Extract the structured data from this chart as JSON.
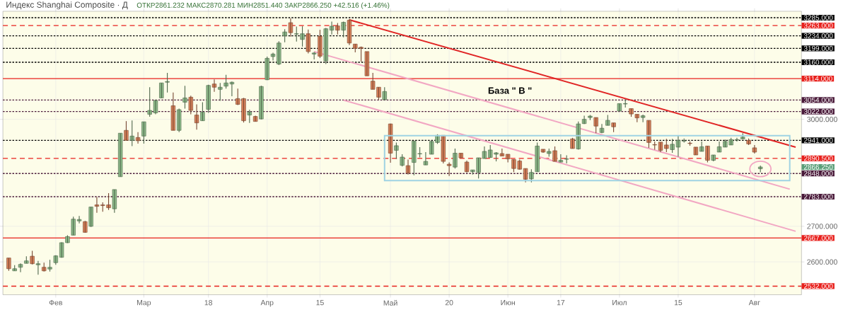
{
  "chart_data": {
    "type": "candlestick",
    "title": "Индекс Shanghai Composite · Д",
    "subtitle": "ОТКР2861.232 МАКС2870.281 МИН2851.440 ЗАКР2866.250 +42.516 (+1.46%)",
    "categories": [
      null,
      null,
      null,
      null,
      null,
      null,
      null,
      null,
      "Фев",
      null,
      null,
      null,
      null,
      null,
      null,
      null,
      null,
      null,
      null,
      null,
      null,
      null,
      null,
      "Мар",
      null,
      null,
      null,
      null,
      null,
      null,
      null,
      null,
      null,
      null,
      "18",
      null,
      null,
      null,
      null,
      null,
      null,
      null,
      null,
      null,
      "Апр",
      null,
      null,
      null,
      null,
      null,
      null,
      null,
      null,
      "15",
      null,
      null,
      null,
      null,
      null,
      null,
      null,
      null,
      null,
      null,
      null,
      "Май",
      null,
      null,
      null,
      null,
      null,
      null,
      null,
      null,
      null,
      "20",
      null,
      null,
      null,
      null,
      null,
      null,
      null,
      null,
      null,
      "Июн",
      null,
      null,
      null,
      null,
      null,
      null,
      null,
      null,
      "17",
      null,
      null,
      null,
      null,
      null,
      null,
      null,
      null,
      null,
      "Июл",
      null,
      null,
      null,
      null,
      null,
      null,
      null,
      null,
      null,
      "15",
      null,
      null,
      null,
      null,
      null,
      null,
      null,
      null,
      null,
      null,
      null,
      null,
      "Авг",
      null,
      null,
      null,
      null,
      null,
      null,
      null,
      null
    ],
    "ohlc": [
      [
        2611,
        2611,
        2575,
        2581
      ],
      [
        2575,
        2591,
        2575,
        2581
      ],
      [
        2585,
        2596,
        2571,
        2593
      ],
      [
        2596,
        2616,
        2596,
        2603
      ],
      [
        2616,
        2631,
        2593,
        2595
      ],
      [
        2592,
        2603,
        2564,
        2595
      ],
      [
        2585,
        2598,
        2573,
        2575
      ],
      [
        2580,
        2606,
        2573,
        2585
      ],
      [
        2598,
        2619,
        2592,
        2617
      ],
      [
        2613,
        2655,
        2612,
        2654
      ],
      [
        2654,
        2675,
        2653,
        2671
      ],
      [
        2675,
        2727,
        2675,
        2720
      ],
      [
        2715,
        2729,
        2708,
        2719
      ],
      [
        2713,
        2715,
        2682,
        2683
      ],
      [
        2700,
        2754,
        2698,
        2754
      ],
      [
        2760,
        2782,
        2738,
        2756
      ],
      [
        2760,
        2767,
        2741,
        2758
      ],
      [
        2760,
        2793,
        2746,
        2752
      ],
      [
        2749,
        2803,
        2738,
        2803
      ],
      [
        2839,
        2961,
        2839,
        2961
      ],
      [
        2969,
        2995,
        2941,
        2941
      ],
      [
        2941,
        2997,
        2925,
        2953
      ],
      [
        2949,
        2964,
        2932,
        2940
      ],
      [
        2953,
        2993,
        2932,
        2993
      ],
      [
        3014,
        3090,
        3007,
        3025
      ],
      [
        3018,
        3053,
        3014,
        3053
      ],
      [
        3060,
        3102,
        3060,
        3102
      ],
      [
        3104,
        3130,
        3075,
        3106
      ],
      [
        3038,
        3075,
        2969,
        2969
      ],
      [
        2969,
        3030,
        2964,
        3027
      ],
      [
        3048,
        3094,
        3030,
        3060
      ],
      [
        3062,
        3066,
        3014,
        3025
      ],
      [
        3012,
        3042,
        2971,
        2990
      ],
      [
        2996,
        3048,
        2996,
        3020
      ],
      [
        3028,
        3097,
        3018,
        3095
      ],
      [
        3099,
        3112,
        3077,
        3090
      ],
      [
        3084,
        3102,
        3052,
        3090
      ],
      [
        3093,
        3125,
        3086,
        3102
      ],
      [
        3099,
        3106,
        3065,
        3104
      ],
      [
        3058,
        3086,
        3040,
        3042
      ],
      [
        3058,
        3060,
        2991,
        2996
      ],
      [
        3012,
        3027,
        2990,
        3021
      ],
      [
        3008,
        3010,
        2994,
        2994
      ],
      [
        3001,
        3094,
        3000,
        3092
      ],
      [
        3111,
        3176,
        3110,
        3171
      ],
      [
        3176,
        3187,
        3165,
        3183
      ],
      [
        3155,
        3219,
        3152,
        3214
      ],
      [
        3234,
        3253,
        3216,
        3245
      ],
      [
        3271,
        3283,
        3232,
        3243
      ],
      [
        3239,
        3260,
        3218,
        3240
      ],
      [
        3224,
        3261,
        3204,
        3240
      ],
      [
        3240,
        3252,
        3185,
        3190
      ],
      [
        3183,
        3189,
        3168,
        3186
      ],
      [
        3233,
        3251,
        3172,
        3177
      ],
      [
        3164,
        3256,
        3155,
        3254
      ],
      [
        3250,
        3274,
        3238,
        3261
      ],
      [
        3262,
        3270,
        3238,
        3250
      ],
      [
        3250,
        3274,
        3230,
        3272
      ],
      [
        3278,
        3281,
        3208,
        3214
      ],
      [
        3211,
        3211,
        3188,
        3199
      ],
      [
        3202,
        3204,
        3162,
        3199
      ],
      [
        3190,
        3190,
        3122,
        3122
      ],
      [
        3107,
        3130,
        3084,
        3084
      ],
      [
        3090,
        3090,
        3055,
        3062
      ],
      [
        3055,
        3090,
        3055,
        3078
      ],
      [
        2987,
        2988,
        2878,
        2905
      ],
      [
        2913,
        2935,
        2889,
        2926
      ],
      [
        2871,
        2902,
        2868,
        2894
      ],
      [
        2870,
        2887,
        2845,
        2849
      ],
      [
        2879,
        2939,
        2843,
        2939
      ],
      [
        2903,
        2922,
        2893,
        2904
      ],
      [
        2872,
        2908,
        2872,
        2882
      ],
      [
        2902,
        2941,
        2902,
        2938
      ],
      [
        2935,
        2958,
        2931,
        2955
      ],
      [
        2955,
        2955,
        2876,
        2882
      ],
      [
        2874,
        2879,
        2841,
        2870
      ],
      [
        2866,
        2918,
        2862,
        2905
      ],
      [
        2905,
        2905,
        2892,
        2892
      ],
      [
        2880,
        2884,
        2851,
        2853
      ],
      [
        2853,
        2858,
        2845,
        2858
      ],
      [
        2851,
        2892,
        2834,
        2892
      ],
      [
        2890,
        2924,
        2890,
        2910
      ],
      [
        2893,
        2928,
        2892,
        2914
      ],
      [
        2902,
        2908,
        2882,
        2906
      ],
      [
        2904,
        2918,
        2897,
        2897
      ],
      [
        2902,
        2902,
        2879,
        2889
      ],
      [
        2887,
        2887,
        2852,
        2862
      ],
      [
        2883,
        2887,
        2859,
        2860
      ],
      [
        2862,
        2862,
        2823,
        2832
      ],
      [
        2833,
        2860,
        2823,
        2851
      ],
      [
        2853,
        2935,
        2853,
        2925
      ],
      [
        2916,
        2916,
        2906,
        2908
      ],
      [
        2904,
        2918,
        2895,
        2910
      ],
      [
        2912,
        2924,
        2882,
        2882
      ],
      [
        2880,
        2902,
        2879,
        2885
      ],
      [
        2888,
        2899,
        2876,
        2889
      ],
      [
        2945,
        2948,
        2918,
        2918
      ],
      [
        2917,
        2994,
        2915,
        2987
      ],
      [
        2988,
        3010,
        2987,
        3000
      ],
      [
        3005,
        3012,
        2998,
        3009
      ],
      [
        3005,
        3005,
        2961,
        2981
      ],
      [
        2963,
        2987,
        2961,
        2975
      ],
      [
        2983,
        3012,
        2983,
        2997
      ],
      [
        2990,
        2990,
        2964,
        2979
      ],
      [
        3023,
        3044,
        3023,
        3044
      ],
      [
        3043,
        3056,
        3033,
        3044
      ],
      [
        3030,
        3030,
        3007,
        3015
      ],
      [
        3014,
        3014,
        2992,
        3004
      ],
      [
        3005,
        3013,
        2992,
        3010
      ],
      [
        2997,
        2997,
        2920,
        2935
      ],
      [
        2929,
        2938,
        2915,
        2928
      ],
      [
        2936,
        2936,
        2908,
        2913
      ],
      [
        2928,
        2945,
        2908,
        2918
      ],
      [
        2915,
        2945,
        2906,
        2930
      ],
      [
        2922,
        2954,
        2895,
        2941
      ],
      [
        2939,
        2946,
        2935,
        2940
      ],
      [
        2933,
        2938,
        2926,
        2932
      ],
      [
        2922,
        2922,
        2900,
        2900
      ],
      [
        2910,
        2938,
        2910,
        2923
      ],
      [
        2925,
        2925,
        2879,
        2885
      ],
      [
        2885,
        2900,
        2882,
        2900
      ],
      [
        2908,
        2938,
        2908,
        2923
      ],
      [
        2922,
        2943,
        2922,
        2938
      ],
      [
        2928,
        2948,
        2928,
        2943
      ],
      [
        2942,
        2948,
        2938,
        2943
      ],
      [
        2945,
        2961,
        2945,
        2950
      ],
      [
        2941,
        2946,
        2928,
        2931
      ],
      [
        2920,
        2928,
        2904,
        2908
      ],
      [
        2861.232,
        2870.281,
        2851.44,
        2866.25
      ],
      null,
      null,
      null,
      null,
      null,
      null,
      null
    ],
    "colors": [
      "#d9825b",
      "#8fbc8b",
      "#8fbc8b",
      "#8fbc8b",
      "#d9825b",
      "#8fbc8b",
      "#d9825b",
      "#8fbc8b",
      "#8fbc8b",
      "#8fbc8b",
      "#8fbc8b",
      "#8fbc8b",
      "#8fbc8b",
      "#d9825b",
      "#8fbc8b",
      "#d9825b",
      "#d9825b",
      "#d9825b",
      "#8fbc8b",
      "#8fbc8b",
      "#d9825b",
      "#8fbc8b",
      "#d9825b",
      "#8fbc8b",
      "#8fbc8b",
      "#8fbc8b",
      "#8fbc8b",
      "#8fbc8b",
      "#d9825b",
      "#8fbc8b",
      "#8fbc8b",
      "#d9825b",
      "#d9825b",
      "#8fbc8b",
      "#8fbc8b",
      "#d9825b",
      "#8fbc8b",
      "#8fbc8b",
      "#8fbc8b",
      "#d9825b",
      "#d9825b",
      "#8fbc8b",
      "#d9825b",
      "#8fbc8b",
      "#8fbc8b",
      "#8fbc8b",
      "#8fbc8b",
      "#8fbc8b",
      "#d9825b",
      "#8fbc8b",
      "#8fbc8b",
      "#d9825b",
      "#8fbc8b",
      "#d9825b",
      "#8fbc8b",
      "#8fbc8b",
      "#d9825b",
      "#8fbc8b",
      "#d9825b",
      "#d9825b",
      "#d9825b",
      "#d9825b",
      "#d9825b",
      "#d9825b",
      "#8fbc8b",
      "#d9825b",
      "#8fbc8b",
      "#8fbc8b",
      "#d9825b",
      "#8fbc8b",
      "#8fbc8b",
      "#8fbc8b",
      "#8fbc8b",
      "#8fbc8b",
      "#d9825b",
      "#d9825b",
      "#8fbc8b",
      "#d9825b",
      "#d9825b",
      "#8fbc8b",
      "#8fbc8b",
      "#8fbc8b",
      "#8fbc8b",
      "#8fbc8b",
      "#d9825b",
      "#d9825b",
      "#d9825b",
      "#d9825b",
      "#d9825b",
      "#8fbc8b",
      "#8fbc8b",
      "#d9825b",
      "#8fbc8b",
      "#d9825b",
      "#8fbc8b",
      "#8fbc8b",
      "#d9825b",
      "#8fbc8b",
      "#8fbc8b",
      "#8fbc8b",
      "#d9825b",
      "#8fbc8b",
      "#8fbc8b",
      "#d9825b",
      "#8fbc8b",
      "#8fbc8b",
      "#d9825b",
      "#d9825b",
      "#8fbc8b",
      "#d9825b",
      "#d9825b",
      "#d9825b",
      "#d9825b",
      "#8fbc8b",
      "#8fbc8b",
      "#8fbc8b",
      "#d9825b",
      "#d9825b",
      "#8fbc8b",
      "#d9825b",
      "#8fbc8b",
      "#8fbc8b",
      "#8fbc8b",
      "#8fbc8b",
      "#8fbc8b",
      "#8fbc8b",
      "#d9825b",
      "#d9825b",
      "#8fbc8b",
      null,
      null,
      null,
      null,
      null,
      null,
      null
    ],
    "ylim": [
      2508,
      3303
    ],
    "yticks": [
      {
        "value": 2600,
        "label": "2600.000"
      },
      {
        "value": 2700,
        "label": "2700.000"
      },
      {
        "value": 3000,
        "label": "3000.000"
      }
    ],
    "grid": true,
    "ref_lines": [
      {
        "axis": "y",
        "value": 3285,
        "label": "3285.000",
        "color": "#000000",
        "line_style": "dotted"
      },
      {
        "axis": "y",
        "value": 3263,
        "label": "3263.000",
        "color": "#e8201c",
        "line_style": "dashed"
      },
      {
        "axis": "y",
        "value": 3234,
        "label": "3234.000",
        "color": "#000000",
        "line_style": "dotted"
      },
      {
        "axis": "y",
        "value": 3199,
        "label": "3199.000",
        "color": "#000000",
        "line_style": "dotted"
      },
      {
        "axis": "y",
        "value": 3160,
        "label": "3160.000",
        "color": "#000000",
        "line_style": "dotted"
      },
      {
        "axis": "y",
        "value": 3114,
        "label": "3114.000",
        "color": "#e8201c",
        "line_style": "solid"
      },
      {
        "axis": "y",
        "value": 3054,
        "label": "3054.000",
        "color": "#4a1a3a",
        "line_style": "dotted"
      },
      {
        "axis": "y",
        "value": 3022,
        "label": "3022.000",
        "color": "#4a1a3a",
        "line_style": "dotted"
      },
      {
        "axis": "y",
        "value": 2941,
        "label": "2941.000",
        "color": "#000000",
        "line_style": "dotted"
      },
      {
        "axis": "y",
        "value": 2890.5,
        "label": "2890.500",
        "color": "#e8201c",
        "line_style": "dashed"
      },
      {
        "axis": "y",
        "value": 2848,
        "label": "2848.000",
        "color": "#4a1a3a",
        "line_style": "dotted"
      },
      {
        "axis": "y",
        "value": 2783,
        "label": "2783.000",
        "color": "#4a1a3a",
        "line_style": "dotted"
      },
      {
        "axis": "y",
        "value": 2667,
        "label": "2667.000",
        "color": "#e8201c",
        "line_style": "solid"
      },
      {
        "axis": "y",
        "value": 2532,
        "label": "2532.000",
        "color": "#e8201c",
        "line_style": "dashed"
      }
    ],
    "series": [
      {
        "type": "line",
        "color": "#e02424",
        "values": [
          null,
          null,
          null,
          null,
          null,
          null,
          null,
          null,
          null,
          null,
          null,
          null,
          null,
          null,
          null,
          null,
          null,
          null,
          null,
          null,
          null,
          null,
          null,
          null,
          null,
          null,
          null,
          null,
          null,
          null,
          null,
          null,
          null,
          null,
          null,
          null,
          null,
          null,
          null,
          null,
          null,
          null,
          null,
          null,
          null,
          null,
          null,
          null,
          null,
          null,
          null,
          null,
          null,
          null,
          null,
          null,
          null,
          null,
          3279,
          null,
          null,
          null,
          null,
          null,
          null,
          null,
          null,
          null,
          null,
          null,
          null,
          null,
          null,
          null,
          null,
          null,
          null,
          null,
          null,
          null,
          null,
          null,
          null,
          null,
          null,
          null,
          null,
          null,
          null,
          null,
          null,
          null,
          null,
          null,
          null,
          null,
          null,
          null,
          null,
          null,
          null,
          null,
          null,
          null,
          null,
          null,
          null,
          null,
          null,
          null,
          null,
          null,
          null,
          null,
          null,
          null,
          null,
          null,
          null,
          null,
          null,
          null,
          null,
          null,
          null,
          null,
          null,
          null,
          null,
          null,
          null,
          null,
          null,
          null,
          2922,
          null
        ]
      },
      {
        "type": "line",
        "color": "#f2a7c3",
        "values": [
          null,
          null,
          null,
          null,
          null,
          null,
          null,
          null,
          null,
          null,
          null,
          null,
          null,
          null,
          null,
          null,
          null,
          null,
          null,
          null,
          null,
          null,
          null,
          null,
          null,
          null,
          null,
          null,
          null,
          null,
          null,
          null,
          null,
          null,
          null,
          null,
          null,
          null,
          null,
          null,
          null,
          null,
          null,
          null,
          null,
          null,
          null,
          null,
          null,
          null,
          null,
          null,
          3190,
          null,
          null,
          null,
          null,
          null,
          null,
          null,
          null,
          null,
          null,
          null,
          null,
          null,
          null,
          null,
          null,
          null,
          null,
          null,
          null,
          null,
          null,
          null,
          null,
          null,
          null,
          null,
          null,
          null,
          null,
          null,
          null,
          null,
          null,
          null,
          null,
          null,
          null,
          null,
          null,
          null,
          null,
          null,
          null,
          null,
          null,
          null,
          null,
          null,
          null,
          null,
          null,
          null,
          null,
          null,
          null,
          null,
          null,
          null,
          null,
          null,
          null,
          null,
          null,
          null,
          null,
          null,
          null,
          null,
          null,
          null,
          null,
          null,
          null,
          null,
          null,
          null,
          null,
          null,
          null,
          2804,
          null,
          null
        ]
      },
      {
        "type": "line",
        "color": "#f2a7c3",
        "values": [
          null,
          null,
          null,
          null,
          null,
          null,
          null,
          null,
          null,
          null,
          null,
          null,
          null,
          null,
          null,
          null,
          null,
          null,
          null,
          null,
          null,
          null,
          null,
          null,
          null,
          null,
          null,
          null,
          null,
          null,
          null,
          null,
          null,
          null,
          null,
          null,
          null,
          null,
          null,
          null,
          null,
          null,
          null,
          null,
          null,
          null,
          null,
          null,
          null,
          null,
          null,
          null,
          null,
          null,
          null,
          null,
          null,
          3054,
          null,
          null,
          null,
          null,
          null,
          null,
          null,
          null,
          null,
          null,
          null,
          null,
          null,
          null,
          null,
          null,
          null,
          null,
          null,
          null,
          null,
          null,
          null,
          null,
          null,
          null,
          null,
          null,
          null,
          null,
          null,
          null,
          null,
          null,
          null,
          null,
          null,
          null,
          null,
          null,
          null,
          null,
          null,
          null,
          null,
          null,
          null,
          null,
          null,
          null,
          null,
          null,
          null,
          null,
          null,
          null,
          null,
          null,
          null,
          null,
          null,
          null,
          null,
          null,
          null,
          null,
          null,
          null,
          null,
          null,
          null,
          null,
          null,
          null,
          null,
          null,
          2686,
          null
        ]
      }
    ],
    "annotations": [
      "База \" В \"",
      "2866.250"
    ]
  }
}
